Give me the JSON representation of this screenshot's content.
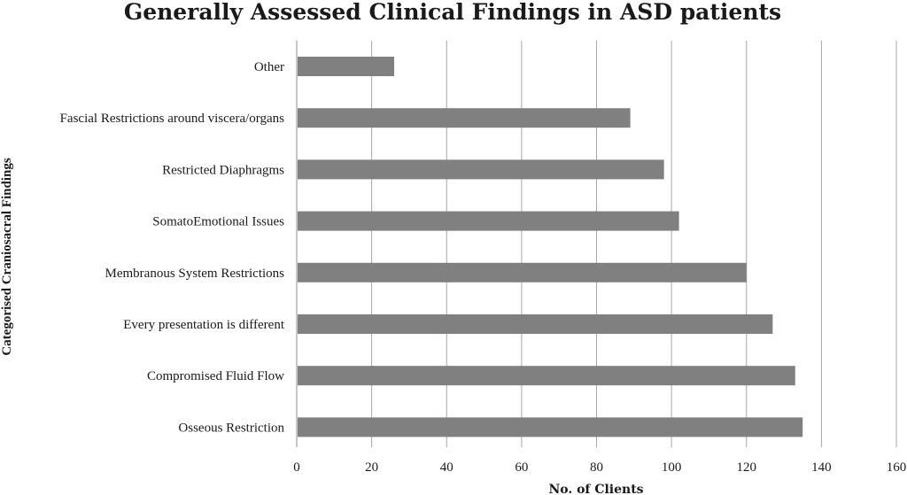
{
  "chart_data": {
    "type": "bar",
    "orientation": "horizontal",
    "title": "Generally Assessed Clinical Findings in ASD patients",
    "xlabel": "No. of Clients",
    "ylabel": "Categorised Craniosacral  Findings",
    "categories": [
      "Other",
      "Fascial Restrictions around viscera/organs",
      "Restricted Diaphragms",
      "SomatoEmotional Issues",
      "Membranous System Restrictions",
      "Every presentation is different",
      "Compromised Fluid Flow",
      "Osseous Restriction"
    ],
    "values": [
      26,
      89,
      98,
      102,
      120,
      127,
      133,
      135
    ],
    "xlim": [
      0,
      160
    ],
    "xticks": [
      "0",
      "20",
      "40",
      "60",
      "80",
      "100",
      "120",
      "140",
      "160"
    ],
    "grid": true,
    "bar_color": "#808080",
    "legend": "none"
  }
}
